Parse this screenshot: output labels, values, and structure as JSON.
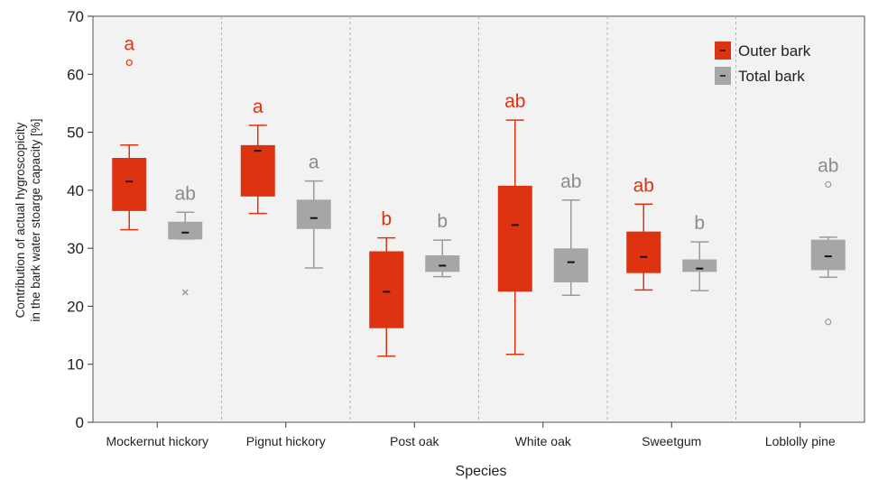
{
  "chart_data": {
    "type": "box",
    "xlabel": "Species",
    "ylabel_line1": "Contribution of actual hygroscopicity",
    "ylabel_line2": "in the bark water stoarge capacity [%]",
    "ylim": [
      0,
      70
    ],
    "yticks": [
      "0",
      "10",
      "20",
      "30",
      "40",
      "50",
      "60",
      "70"
    ],
    "categories": [
      "Mockernut hickory",
      "Pignut hickory",
      "Post oak",
      "White oak",
      "Sweetgum",
      "Loblolly pine"
    ],
    "grid": "vertical dashed separators between categories",
    "legend_position": "top-right",
    "colors": {
      "outer": "#dd3311",
      "total": "#a6a6a6",
      "total_text": "#8c8c8c"
    },
    "series": [
      {
        "name": "Outer bark",
        "boxes": [
          {
            "category": "Mockernut hickory",
            "whisker_low": 33.2,
            "q1": 36.5,
            "median": 41.5,
            "q3": 45.5,
            "whisker_high": 47.8,
            "outliers": [
              62
            ],
            "extremes": [],
            "letter": "a"
          },
          {
            "category": "Pignut hickory",
            "whisker_low": 36,
            "q1": 39,
            "median": 46.8,
            "q3": 47.7,
            "whisker_high": 51.2,
            "outliers": [],
            "extremes": [],
            "letter": "a"
          },
          {
            "category": "Post oak",
            "whisker_low": 11.4,
            "q1": 16.3,
            "median": 22.5,
            "q3": 29.4,
            "whisker_high": 31.8,
            "outliers": [],
            "extremes": [],
            "letter": "b"
          },
          {
            "category": "White oak",
            "whisker_low": 11.7,
            "q1": 22.6,
            "median": 34,
            "q3": 40.7,
            "whisker_high": 52.1,
            "outliers": [],
            "extremes": [],
            "letter": "ab"
          },
          {
            "category": "Sweetgum",
            "whisker_low": 22.8,
            "q1": 25.8,
            "median": 28.5,
            "q3": 32.8,
            "whisker_high": 37.6,
            "outliers": [],
            "extremes": [],
            "letter": "ab"
          }
        ]
      },
      {
        "name": "Total bark",
        "boxes": [
          {
            "category": "Mockernut hickory",
            "whisker_low": 31.6,
            "q1": 31.6,
            "median": 32.7,
            "q3": 34.5,
            "whisker_high": 36.2,
            "outliers": [],
            "extremes": [
              22.4
            ],
            "letter": "ab"
          },
          {
            "category": "Pignut hickory",
            "whisker_low": 26.6,
            "q1": 33.4,
            "median": 35.2,
            "q3": 38.3,
            "whisker_high": 41.6,
            "outliers": [],
            "extremes": [],
            "letter": "a"
          },
          {
            "category": "Post oak",
            "whisker_low": 25.1,
            "q1": 26,
            "median": 27,
            "q3": 28.7,
            "whisker_high": 31.4,
            "outliers": [],
            "extremes": [],
            "letter": "b"
          },
          {
            "category": "White oak",
            "whisker_low": 21.9,
            "q1": 24.2,
            "median": 27.6,
            "q3": 29.9,
            "whisker_high": 38.3,
            "outliers": [],
            "extremes": [],
            "letter": "ab"
          },
          {
            "category": "Sweetgum",
            "whisker_low": 22.7,
            "q1": 26,
            "median": 26.5,
            "q3": 28,
            "whisker_high": 31.1,
            "outliers": [],
            "extremes": [],
            "letter": "b"
          },
          {
            "category": "Loblolly pine",
            "whisker_low": 25,
            "q1": 26.3,
            "median": 28.6,
            "q3": 31.4,
            "whisker_high": 31.9,
            "outliers": [
              41,
              17.3
            ],
            "extremes": [],
            "letter": "ab"
          }
        ]
      }
    ]
  }
}
